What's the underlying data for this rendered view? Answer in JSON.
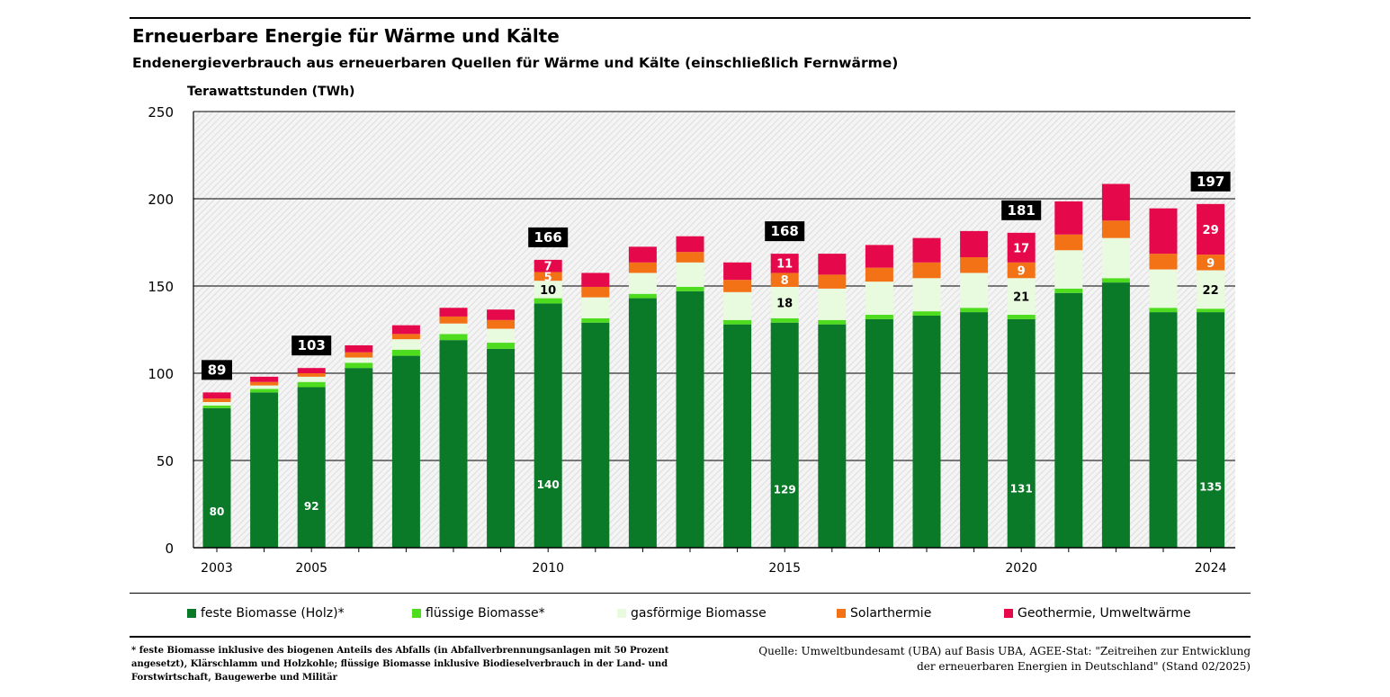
{
  "title": "Erneuerbare Energie für Wärme und Kälte",
  "subtitle": "Endenergieverbrauch aus erneuerbaren Quellen für Wärme und Kälte (einschließlich Fernwärme)",
  "footnote": "* feste Biomasse inklusive des biogenen Anteils des Abfalls (in Abfallverbrennungsanlagen mit 50 Prozent angesetzt), Klärschlamm und Holzkohle; flüssige Biomasse inklusive Biodieselverbrauch in der Land- und Forstwirtschaft, Baugewerbe und Militär",
  "source": "Quelle: Umweltbundesamt (UBA) auf Basis UBA, AGEE-Stat: \"Zeitreihen zur Entwicklung der erneuerbaren Energien in Deutschland\" (Stand 02/2025)",
  "chart_data": {
    "type": "bar",
    "stacked": true,
    "ylabel": "Terawattstunden (TWh)",
    "ylim": [
      0,
      250
    ],
    "yticks": [
      0,
      50,
      100,
      150,
      200,
      250
    ],
    "grid": true,
    "legend_position": "bottom",
    "categories": [
      "2003",
      "2004",
      "2005",
      "2006",
      "2007",
      "2008",
      "2009",
      "2010",
      "2011",
      "2012",
      "2013",
      "2014",
      "2015",
      "2016",
      "2017",
      "2018",
      "2019",
      "2020",
      "2021",
      "2022",
      "2023",
      "2024"
    ],
    "x_tick_labels": [
      "2003",
      "",
      "2005",
      "",
      "",
      "",
      "",
      "2010",
      "",
      "",
      "",
      "",
      "2015",
      "",
      "",
      "",
      "",
      "2020",
      "",
      "",
      "",
      "2024"
    ],
    "series": [
      {
        "name": "feste Biomasse (Holz)*",
        "color": "#0a7a28",
        "values": [
          80,
          89,
          92,
          103,
          110,
          119,
          114,
          140,
          129,
          143,
          147,
          128,
          129,
          128,
          131,
          133,
          135,
          131,
          146,
          152,
          135,
          135
        ]
      },
      {
        "name": "flüssige Biomasse*",
        "color": "#4ddc1e",
        "values": [
          1.5,
          2,
          3,
          3,
          3.5,
          3.5,
          3.5,
          3,
          2.5,
          2.5,
          2.5,
          2.5,
          2.5,
          2.5,
          2.5,
          2.5,
          2.5,
          2.5,
          2.5,
          2.5,
          2.5,
          2
        ]
      },
      {
        "name": "gasförmige Biomasse",
        "color": "#e8fbde",
        "values": [
          2,
          2,
          3,
          3,
          6,
          6,
          8,
          10,
          12,
          12,
          14,
          16,
          18,
          18,
          19,
          19,
          20,
          21,
          22,
          23,
          22,
          22
        ]
      },
      {
        "name": "Solarthermie",
        "color": "#f47216",
        "values": [
          2,
          2,
          2,
          3,
          3,
          4,
          5,
          5,
          6,
          6,
          6,
          7,
          8,
          8,
          8,
          9,
          9,
          9,
          9,
          10,
          9,
          9
        ]
      },
      {
        "name": "Geothermie, Umweltwärme",
        "color": "#e5094b",
        "values": [
          3.5,
          3,
          3,
          4,
          5,
          5,
          6,
          7,
          8,
          9,
          9,
          10,
          11,
          12,
          13,
          14,
          15,
          17,
          19,
          21,
          26,
          29
        ]
      }
    ],
    "totals": [
      89,
      null,
      103,
      null,
      null,
      null,
      null,
      166,
      null,
      null,
      null,
      null,
      168,
      null,
      null,
      null,
      null,
      181,
      null,
      null,
      null,
      197
    ],
    "segment_labels": [
      {
        "year": "2003",
        "series": 0,
        "text": "80"
      },
      {
        "year": "2005",
        "series": 0,
        "text": "92"
      },
      {
        "year": "2010",
        "series": 0,
        "text": "140"
      },
      {
        "year": "2010",
        "series": 2,
        "text": "10"
      },
      {
        "year": "2010",
        "series": 3,
        "text": "5"
      },
      {
        "year": "2010",
        "series": 4,
        "text": "7"
      },
      {
        "year": "2015",
        "series": 0,
        "text": "129"
      },
      {
        "year": "2015",
        "series": 2,
        "text": "18"
      },
      {
        "year": "2015",
        "series": 3,
        "text": "8"
      },
      {
        "year": "2015",
        "series": 4,
        "text": "11"
      },
      {
        "year": "2020",
        "series": 0,
        "text": "131"
      },
      {
        "year": "2020",
        "series": 2,
        "text": "21"
      },
      {
        "year": "2020",
        "series": 3,
        "text": "9"
      },
      {
        "year": "2020",
        "series": 4,
        "text": "17"
      },
      {
        "year": "2024",
        "series": 0,
        "text": "135"
      },
      {
        "year": "2024",
        "series": 2,
        "text": "22"
      },
      {
        "year": "2024",
        "series": 3,
        "text": "9"
      },
      {
        "year": "2024",
        "series": 4,
        "text": "29"
      }
    ]
  }
}
